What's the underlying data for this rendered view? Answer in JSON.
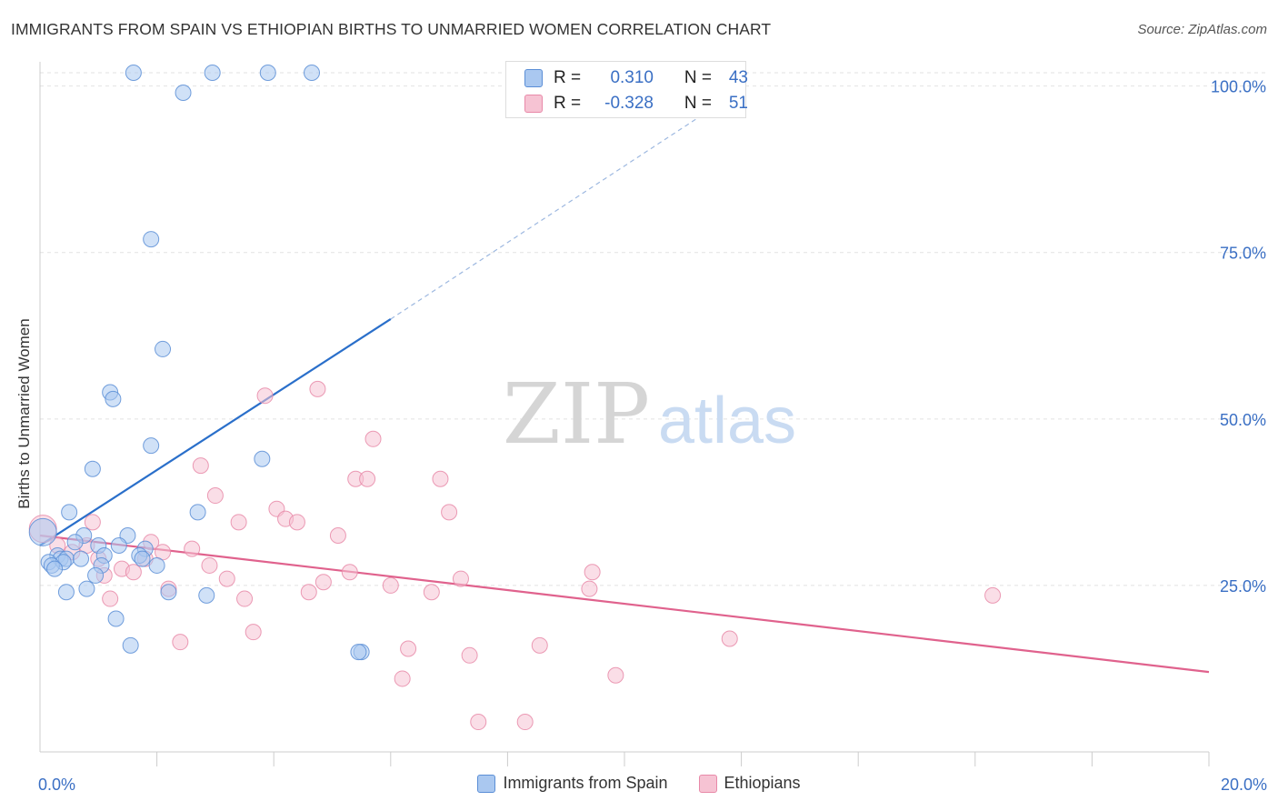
{
  "title": "IMMIGRANTS FROM SPAIN VS ETHIOPIAN BIRTHS TO UNMARRIED WOMEN CORRELATION CHART",
  "source": "Source: ZipAtlas.com",
  "watermark": {
    "zip": "ZIP",
    "atlas": "atlas"
  },
  "colors": {
    "blue": "#5b8ed6",
    "blue_fill": "#aac8f0",
    "blue_line": "#2a6fca",
    "pink": "#e889a8",
    "pink_fill": "#f6c3d3",
    "pink_line": "#e0628d",
    "axis_text": "#3a6fc4",
    "grid": "#e2e2e2"
  },
  "stats_box": {
    "rows": [
      {
        "r_label": "R =",
        "r_value": "0.310",
        "n_label": "N =",
        "n_value": "43"
      },
      {
        "r_label": "R =",
        "r_value": "-0.328",
        "n_label": "N =",
        "n_value": "51"
      }
    ]
  },
  "chart_data": {
    "type": "scatter",
    "title": "IMMIGRANTS FROM SPAIN VS ETHIOPIAN BIRTHS TO UNMARRIED WOMEN CORRELATION CHART",
    "xlabel": "",
    "ylabel": "Births to Unmarried Women",
    "xlim": [
      0,
      20
    ],
    "ylim": [
      0,
      102
    ],
    "x_tick_labels": [
      {
        "value": 0,
        "label": "0.0%"
      },
      {
        "value": 20,
        "label": "20.0%"
      }
    ],
    "y_tick_labels": [
      {
        "value": 25,
        "label": "25.0%"
      },
      {
        "value": 50,
        "label": "50.0%"
      },
      {
        "value": 75,
        "label": "75.0%"
      },
      {
        "value": 100,
        "label": "100.0%"
      }
    ],
    "x_minor_ticks": [
      2,
      4,
      6,
      8,
      10,
      12,
      14,
      16,
      18,
      20
    ],
    "grid": true,
    "legend": "bottom-center",
    "series": [
      {
        "name": "Immigrants from Spain",
        "color": "#5b8ed6",
        "points": [
          [
            1.6,
            102
          ],
          [
            2.95,
            102
          ],
          [
            3.9,
            102
          ],
          [
            4.65,
            102
          ],
          [
            2.45,
            99
          ],
          [
            1.9,
            77
          ],
          [
            2.1,
            60.5
          ],
          [
            1.2,
            54
          ],
          [
            1.25,
            53
          ],
          [
            1.9,
            46
          ],
          [
            0.9,
            42.5
          ],
          [
            3.8,
            44
          ],
          [
            2.7,
            36
          ],
          [
            0.5,
            36
          ],
          [
            0.75,
            32.5
          ],
          [
            1.5,
            32.5
          ],
          [
            0.6,
            31.5
          ],
          [
            1.0,
            31
          ],
          [
            1.35,
            31
          ],
          [
            1.8,
            30.5
          ],
          [
            0.3,
            29.5
          ],
          [
            0.35,
            29
          ],
          [
            0.45,
            29
          ],
          [
            1.1,
            29.5
          ],
          [
            0.7,
            29
          ],
          [
            1.7,
            29.5
          ],
          [
            1.75,
            29
          ],
          [
            0.15,
            28.5
          ],
          [
            0.4,
            28.5
          ],
          [
            0.2,
            28
          ],
          [
            1.05,
            28
          ],
          [
            2.0,
            28
          ],
          [
            0.25,
            27.5
          ],
          [
            0.95,
            26.5
          ],
          [
            0.45,
            24
          ],
          [
            0.8,
            24.5
          ],
          [
            2.2,
            24
          ],
          [
            2.85,
            23.5
          ],
          [
            1.3,
            20
          ],
          [
            1.55,
            16
          ],
          [
            5.5,
            15
          ],
          [
            5.45,
            15
          ],
          [
            0.05,
            33
          ]
        ],
        "trend": {
          "x": [
            0,
            6
          ],
          "y": [
            31.0,
            65.0
          ]
        },
        "trend_extension": {
          "x": [
            6,
            12
          ],
          "y": [
            65.0,
            99.5
          ]
        }
      },
      {
        "name": "Ethiopians",
        "color": "#e889a8",
        "points": [
          [
            0.05,
            33.5
          ],
          [
            0.3,
            31
          ],
          [
            0.55,
            30
          ],
          [
            0.8,
            31
          ],
          [
            1.1,
            26.5
          ],
          [
            1.2,
            23
          ],
          [
            1.4,
            27.5
          ],
          [
            1.6,
            27
          ],
          [
            1.8,
            29
          ],
          [
            1.9,
            31.5
          ],
          [
            2.1,
            30
          ],
          [
            2.2,
            24.5
          ],
          [
            2.4,
            16.5
          ],
          [
            2.6,
            30.5
          ],
          [
            2.75,
            43
          ],
          [
            2.9,
            28
          ],
          [
            3.0,
            38.5
          ],
          [
            3.2,
            26
          ],
          [
            3.4,
            34.5
          ],
          [
            3.5,
            23
          ],
          [
            3.65,
            18
          ],
          [
            3.85,
            53.5
          ],
          [
            4.05,
            36.5
          ],
          [
            4.2,
            35
          ],
          [
            4.4,
            34.5
          ],
          [
            4.6,
            24
          ],
          [
            4.75,
            54.5
          ],
          [
            4.85,
            25.5
          ],
          [
            5.1,
            32.5
          ],
          [
            5.3,
            27
          ],
          [
            5.4,
            41
          ],
          [
            5.6,
            41
          ],
          [
            5.7,
            47
          ],
          [
            6.0,
            25
          ],
          [
            6.2,
            11
          ],
          [
            6.3,
            15.5
          ],
          [
            6.7,
            24
          ],
          [
            6.85,
            41
          ],
          [
            7.0,
            36
          ],
          [
            7.2,
            26
          ],
          [
            7.35,
            14.5
          ],
          [
            7.5,
            4.5
          ],
          [
            8.3,
            4.5
          ],
          [
            8.55,
            16
          ],
          [
            9.4,
            24.5
          ],
          [
            9.45,
            27
          ],
          [
            9.85,
            11.5
          ],
          [
            11.8,
            17
          ],
          [
            16.3,
            23.5
          ],
          [
            0.9,
            34.5
          ],
          [
            1.0,
            29
          ]
        ],
        "trend": {
          "x": [
            0,
            20
          ],
          "y": [
            32.5,
            12.0
          ]
        }
      }
    ]
  }
}
